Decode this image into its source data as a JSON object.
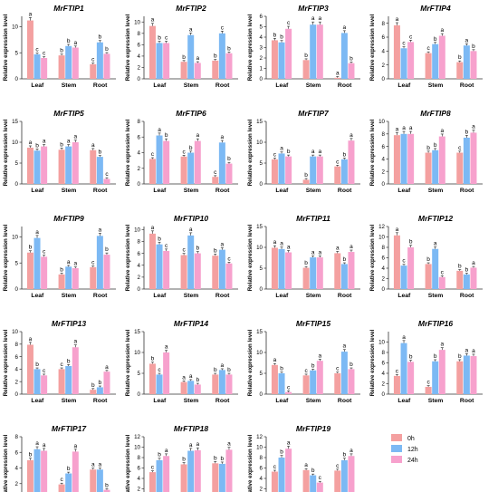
{
  "colors": {
    "s0": "#f4a0a0",
    "s1": "#7cb9f4",
    "s2": "#f7a1cd",
    "axis": "#333333",
    "error": "#222222"
  },
  "legend": {
    "position": "bottom-right",
    "entries": [
      "0h",
      "12h",
      "24h"
    ]
  },
  "chart_data": [
    {
      "type": "bar",
      "title": "MrFTIP1",
      "ylabel": "Relative expression level",
      "categories": [
        "Leaf",
        "Stem",
        "Root"
      ],
      "ylim": [
        0,
        12
      ],
      "yticks": [
        0,
        5,
        10
      ],
      "series": [
        {
          "name": "0h",
          "values": [
            11.2,
            4.5,
            2.8
          ]
        },
        {
          "name": "12h",
          "values": [
            4.7,
            6.3,
            7.0
          ]
        },
        {
          "name": "24h",
          "values": [
            4.0,
            6.0,
            4.8
          ]
        }
      ],
      "letters": [
        [
          "a",
          "b",
          "c"
        ],
        [
          "c",
          "b",
          "b"
        ],
        [
          "c",
          "a",
          "b"
        ]
      ]
    },
    {
      "type": "bar",
      "title": "MrFTIP2",
      "ylabel": "Relative expression level",
      "categories": [
        "Leaf",
        "Stem",
        "Root"
      ],
      "ylim": [
        0,
        11
      ],
      "yticks": [
        0,
        2,
        4,
        6,
        8,
        10
      ],
      "series": [
        {
          "name": "0h",
          "values": [
            9.3,
            3.0,
            3.2
          ]
        },
        {
          "name": "12h",
          "values": [
            6.3,
            7.7,
            8.0
          ]
        },
        {
          "name": "24h",
          "values": [
            6.3,
            2.8,
            4.5
          ]
        }
      ],
      "letters": [
        [
          "a",
          "b",
          "b"
        ],
        [
          "b",
          "a",
          "c"
        ],
        [
          "c",
          "a",
          "b"
        ]
      ]
    },
    {
      "type": "bar",
      "title": "MrFTIP3",
      "ylabel": "Relative expression level",
      "categories": [
        "Leaf",
        "Stem",
        "Root"
      ],
      "ylim": [
        0,
        6
      ],
      "yticks": [
        0,
        1,
        2,
        3,
        4,
        5,
        6
      ],
      "series": [
        {
          "name": "0h",
          "values": [
            3.7,
            1.8,
            0.1
          ]
        },
        {
          "name": "12h",
          "values": [
            3.5,
            5.2,
            4.4
          ]
        },
        {
          "name": "24h",
          "values": [
            4.8,
            5.2,
            1.5
          ]
        }
      ],
      "letters": [
        [
          "b",
          "b",
          "a"
        ],
        [
          "b",
          "a",
          "a"
        ],
        [
          "c",
          "a",
          "b"
        ]
      ]
    },
    {
      "type": "bar",
      "title": "MrFTIP4",
      "ylabel": "Relative expression level",
      "categories": [
        "Leaf",
        "Stem",
        "Root"
      ],
      "ylim": [
        0,
        9
      ],
      "yticks": [
        0,
        2,
        4,
        6,
        8
      ],
      "series": [
        {
          "name": "0h",
          "values": [
            7.7,
            3.7,
            2.4
          ]
        },
        {
          "name": "12h",
          "values": [
            4.4,
            5.0,
            4.8
          ]
        },
        {
          "name": "24h",
          "values": [
            5.3,
            6.2,
            4.0
          ]
        }
      ],
      "letters": [
        [
          "a",
          "c",
          "b"
        ],
        [
          "c",
          "b",
          "a"
        ],
        [
          "c",
          "a",
          "b"
        ]
      ]
    },
    {
      "type": "bar",
      "title": "MrFTIP5",
      "ylabel": "Relative expression level",
      "categories": [
        "Leaf",
        "Stem",
        "Root"
      ],
      "ylim": [
        0,
        15
      ],
      "yticks": [
        0,
        5,
        10,
        15
      ],
      "series": [
        {
          "name": "0h",
          "values": [
            8.7,
            8.2,
            8.1
          ]
        },
        {
          "name": "12h",
          "values": [
            8.0,
            9.0,
            6.5
          ]
        },
        {
          "name": "24h",
          "values": [
            9.0,
            10.0,
            1.2
          ]
        }
      ],
      "letters": [
        [
          "a",
          "b",
          "a"
        ],
        [
          "b",
          "a",
          "b"
        ],
        [
          "a",
          "a",
          "c"
        ]
      ]
    },
    {
      "type": "bar",
      "title": "MrFTIP6",
      "ylabel": "Relative expression level",
      "categories": [
        "Leaf",
        "Stem",
        "Root"
      ],
      "ylim": [
        0,
        8
      ],
      "yticks": [
        0,
        2,
        4,
        6,
        8
      ],
      "series": [
        {
          "name": "0h",
          "values": [
            3.2,
            3.5,
            0.9
          ]
        },
        {
          "name": "12h",
          "values": [
            6.2,
            4.0,
            5.3
          ]
        },
        {
          "name": "24h",
          "values": [
            5.5,
            5.5,
            2.6
          ]
        }
      ],
      "letters": [
        [
          "c",
          "c",
          "c"
        ],
        [
          "a",
          "b",
          "a"
        ],
        [
          "b",
          "a",
          "b"
        ]
      ]
    },
    {
      "type": "bar",
      "title": "MrFTIP7",
      "ylabel": "Relative expression level",
      "categories": [
        "Leaf",
        "Stem",
        "Root"
      ],
      "ylim": [
        0,
        15
      ],
      "yticks": [
        0,
        5,
        10,
        15
      ],
      "series": [
        {
          "name": "0h",
          "values": [
            5.9,
            1.0,
            4.2
          ]
        },
        {
          "name": "12h",
          "values": [
            7.3,
            6.6,
            5.9
          ]
        },
        {
          "name": "24h",
          "values": [
            6.6,
            6.6,
            10.4
          ]
        }
      ],
      "letters": [
        [
          "c",
          "b",
          "c"
        ],
        [
          "a",
          "a",
          "b"
        ],
        [
          "b",
          "a",
          "a"
        ]
      ]
    },
    {
      "type": "bar",
      "title": "MrFTIP8",
      "ylabel": "Relative expression level",
      "categories": [
        "Leaf",
        "Stem",
        "Root"
      ],
      "ylim": [
        0,
        10
      ],
      "yticks": [
        0,
        2,
        4,
        6,
        8,
        10
      ],
      "series": [
        {
          "name": "0h",
          "values": [
            7.8,
            5.0,
            5.0
          ]
        },
        {
          "name": "12h",
          "values": [
            8.0,
            5.4,
            7.4
          ]
        },
        {
          "name": "24h",
          "values": [
            8.0,
            7.6,
            8.2
          ]
        }
      ],
      "letters": [
        [
          "a",
          "b",
          "c"
        ],
        [
          "a",
          "b",
          "b"
        ],
        [
          "a",
          "a",
          "a"
        ]
      ]
    },
    {
      "type": "bar",
      "title": "MrFTIP9",
      "ylabel": "Relative expression level",
      "categories": [
        "Leaf",
        "Stem",
        "Root"
      ],
      "ylim": [
        0,
        12
      ],
      "yticks": [
        0,
        5,
        10
      ],
      "series": [
        {
          "name": "0h",
          "values": [
            7.0,
            2.8,
            4.2
          ]
        },
        {
          "name": "12h",
          "values": [
            9.8,
            4.3,
            10.2
          ]
        },
        {
          "name": "24h",
          "values": [
            6.2,
            4.0,
            6.6
          ]
        }
      ],
      "letters": [
        [
          "b",
          "b",
          "c"
        ],
        [
          "a",
          "a",
          "a"
        ],
        [
          "c",
          "a",
          "b"
        ]
      ]
    },
    {
      "type": "bar",
      "title": "MrFTIP10",
      "ylabel": "Relative expression level",
      "categories": [
        "Leaf",
        "Stem",
        "Root"
      ],
      "ylim": [
        0,
        10.5
      ],
      "yticks": [
        0,
        2,
        4,
        6,
        8,
        10
      ],
      "series": [
        {
          "name": "0h",
          "values": [
            9.3,
            5.7,
            5.6
          ]
        },
        {
          "name": "12h",
          "values": [
            7.5,
            9.0,
            6.6
          ]
        },
        {
          "name": "24h",
          "values": [
            6.4,
            6.0,
            4.3
          ]
        }
      ],
      "letters": [
        [
          "a",
          "c",
          "b"
        ],
        [
          "b",
          "a",
          "a"
        ],
        [
          "c",
          "b",
          "c"
        ]
      ]
    },
    {
      "type": "bar",
      "title": "MrFTIP11",
      "ylabel": "Relative expression level",
      "categories": [
        "Leaf",
        "Stem",
        "Root"
      ],
      "ylim": [
        0,
        15
      ],
      "yticks": [
        0,
        5,
        10,
        15
      ],
      "series": [
        {
          "name": "0h",
          "values": [
            9.9,
            5.1,
            8.6
          ]
        },
        {
          "name": "12h",
          "values": [
            9.6,
            7.6,
            6.0
          ]
        },
        {
          "name": "24h",
          "values": [
            8.8,
            7.6,
            8.9
          ]
        }
      ],
      "letters": [
        [
          "a",
          "b",
          "a"
        ],
        [
          "a",
          "a",
          "b"
        ],
        [
          "a",
          "a",
          "a"
        ]
      ]
    },
    {
      "type": "bar",
      "title": "MrFTIP12",
      "ylabel": "Relative expression level",
      "categories": [
        "Leaf",
        "Stem",
        "Root"
      ],
      "ylim": [
        0,
        12
      ],
      "yticks": [
        0,
        2,
        4,
        6,
        8,
        10,
        12
      ],
      "series": [
        {
          "name": "0h",
          "values": [
            10.3,
            4.8,
            3.5
          ]
        },
        {
          "name": "12h",
          "values": [
            4.5,
            7.7,
            2.8
          ]
        },
        {
          "name": "24h",
          "values": [
            8.0,
            2.3,
            4.1
          ]
        }
      ],
      "letters": [
        [
          "a",
          "b",
          "b"
        ],
        [
          "c",
          "a",
          "b"
        ],
        [
          "b",
          "c",
          "a"
        ]
      ]
    },
    {
      "type": "bar",
      "title": "MrFTIP13",
      "ylabel": "Relative expression level",
      "categories": [
        "Leaf",
        "Stem",
        "Root"
      ],
      "ylim": [
        0,
        10
      ],
      "yticks": [
        0,
        2,
        4,
        6,
        8,
        10
      ],
      "series": [
        {
          "name": "0h",
          "values": [
            7.9,
            4.0,
            0.7
          ]
        },
        {
          "name": "12h",
          "values": [
            4.0,
            4.5,
            1.1
          ]
        },
        {
          "name": "24h",
          "values": [
            3.0,
            7.5,
            3.6
          ]
        }
      ],
      "letters": [
        [
          "a",
          "c",
          "b"
        ],
        [
          "b",
          "b",
          "b"
        ],
        [
          "c",
          "a",
          "a"
        ]
      ]
    },
    {
      "type": "bar",
      "title": "MrFTIP14",
      "ylabel": "Relative expression level",
      "categories": [
        "Leaf",
        "Stem",
        "Root"
      ],
      "ylim": [
        0,
        15
      ],
      "yticks": [
        0,
        5,
        10,
        15
      ],
      "series": [
        {
          "name": "0h",
          "values": [
            7.3,
            2.9,
            4.7
          ]
        },
        {
          "name": "12h",
          "values": [
            4.7,
            3.2,
            5.8
          ]
        },
        {
          "name": "24h",
          "values": [
            10.0,
            2.3,
            4.7
          ]
        }
      ],
      "letters": [
        [
          "b",
          "a",
          "b"
        ],
        [
          "c",
          "a",
          "a"
        ],
        [
          "a",
          "b",
          "b"
        ]
      ]
    },
    {
      "type": "bar",
      "title": "MrFTIP15",
      "ylabel": "Relative expression level",
      "categories": [
        "Leaf",
        "Stem",
        "Root"
      ],
      "ylim": [
        0,
        15
      ],
      "yticks": [
        0,
        5,
        10,
        15
      ],
      "series": [
        {
          "name": "0h",
          "values": [
            7.0,
            4.5,
            5.0
          ]
        },
        {
          "name": "12h",
          "values": [
            5.0,
            5.7,
            10.2
          ]
        },
        {
          "name": "24h",
          "values": [
            0.5,
            8.0,
            6.0
          ]
        }
      ],
      "letters": [
        [
          "a",
          "c",
          "c"
        ],
        [
          "b",
          "b",
          "a"
        ],
        [
          "c",
          "a",
          "b"
        ]
      ]
    },
    {
      "type": "bar",
      "title": "MrFTIP16",
      "ylabel": "Relative expression level",
      "categories": [
        "Leaf",
        "Stem",
        "Root"
      ],
      "ylim": [
        0,
        12
      ],
      "yticks": [
        0,
        2,
        4,
        6,
        8,
        10
      ],
      "series": [
        {
          "name": "0h",
          "values": [
            3.5,
            1.4,
            6.3
          ]
        },
        {
          "name": "12h",
          "values": [
            9.8,
            6.3,
            7.4
          ]
        },
        {
          "name": "24h",
          "values": [
            6.2,
            8.5,
            7.3
          ]
        }
      ],
      "letters": [
        [
          "c",
          "c",
          "b"
        ],
        [
          "a",
          "b",
          "a"
        ],
        [
          "b",
          "a",
          "a"
        ]
      ]
    },
    {
      "type": "bar",
      "title": "MrFTIP17",
      "ylabel": "Relative expression level",
      "categories": [
        "Leaf",
        "Stem",
        "Root"
      ],
      "ylim": [
        0,
        8
      ],
      "yticks": [
        0,
        2,
        4,
        6,
        8
      ],
      "series": [
        {
          "name": "0h",
          "values": [
            5.0,
            1.9,
            3.8
          ]
        },
        {
          "name": "12h",
          "values": [
            6.4,
            3.3,
            3.8
          ]
        },
        {
          "name": "24h",
          "values": [
            6.2,
            6.1,
            1.2
          ]
        }
      ],
      "letters": [
        [
          "b",
          "c",
          "a"
        ],
        [
          "a",
          "b",
          "a"
        ],
        [
          "a",
          "a",
          "b"
        ]
      ]
    },
    {
      "type": "bar",
      "title": "MrFTIP18",
      "ylabel": "Relative expression level",
      "categories": [
        "Leaf",
        "Stem",
        "Root"
      ],
      "ylim": [
        0,
        12
      ],
      "yticks": [
        0,
        2,
        4,
        6,
        8,
        10,
        12
      ],
      "series": [
        {
          "name": "0h",
          "values": [
            5.2,
            6.7,
            6.9
          ]
        },
        {
          "name": "12h",
          "values": [
            7.5,
            9.3,
            6.8
          ]
        },
        {
          "name": "24h",
          "values": [
            8.3,
            9.4,
            9.5
          ]
        }
      ],
      "letters": [
        [
          "c",
          "b",
          "b"
        ],
        [
          "b",
          "a",
          "b"
        ],
        [
          "a",
          "a",
          "a"
        ]
      ]
    },
    {
      "type": "bar",
      "title": "MrFTIP19",
      "ylabel": "Relative expression level",
      "categories": [
        "Leaf",
        "Stem",
        "Root"
      ],
      "ylim": [
        0,
        12
      ],
      "yticks": [
        0,
        2,
        4,
        6,
        8,
        10,
        12
      ],
      "series": [
        {
          "name": "0h",
          "values": [
            5.3,
            5.6,
            5.5
          ]
        },
        {
          "name": "12h",
          "values": [
            8.0,
            4.6,
            7.5
          ]
        },
        {
          "name": "24h",
          "values": [
            9.7,
            3.2,
            8.3
          ]
        }
      ],
      "letters": [
        [
          "c",
          "a",
          "c"
        ],
        [
          "b",
          "b",
          "b"
        ],
        [
          "a",
          "c",
          "a"
        ]
      ]
    }
  ]
}
